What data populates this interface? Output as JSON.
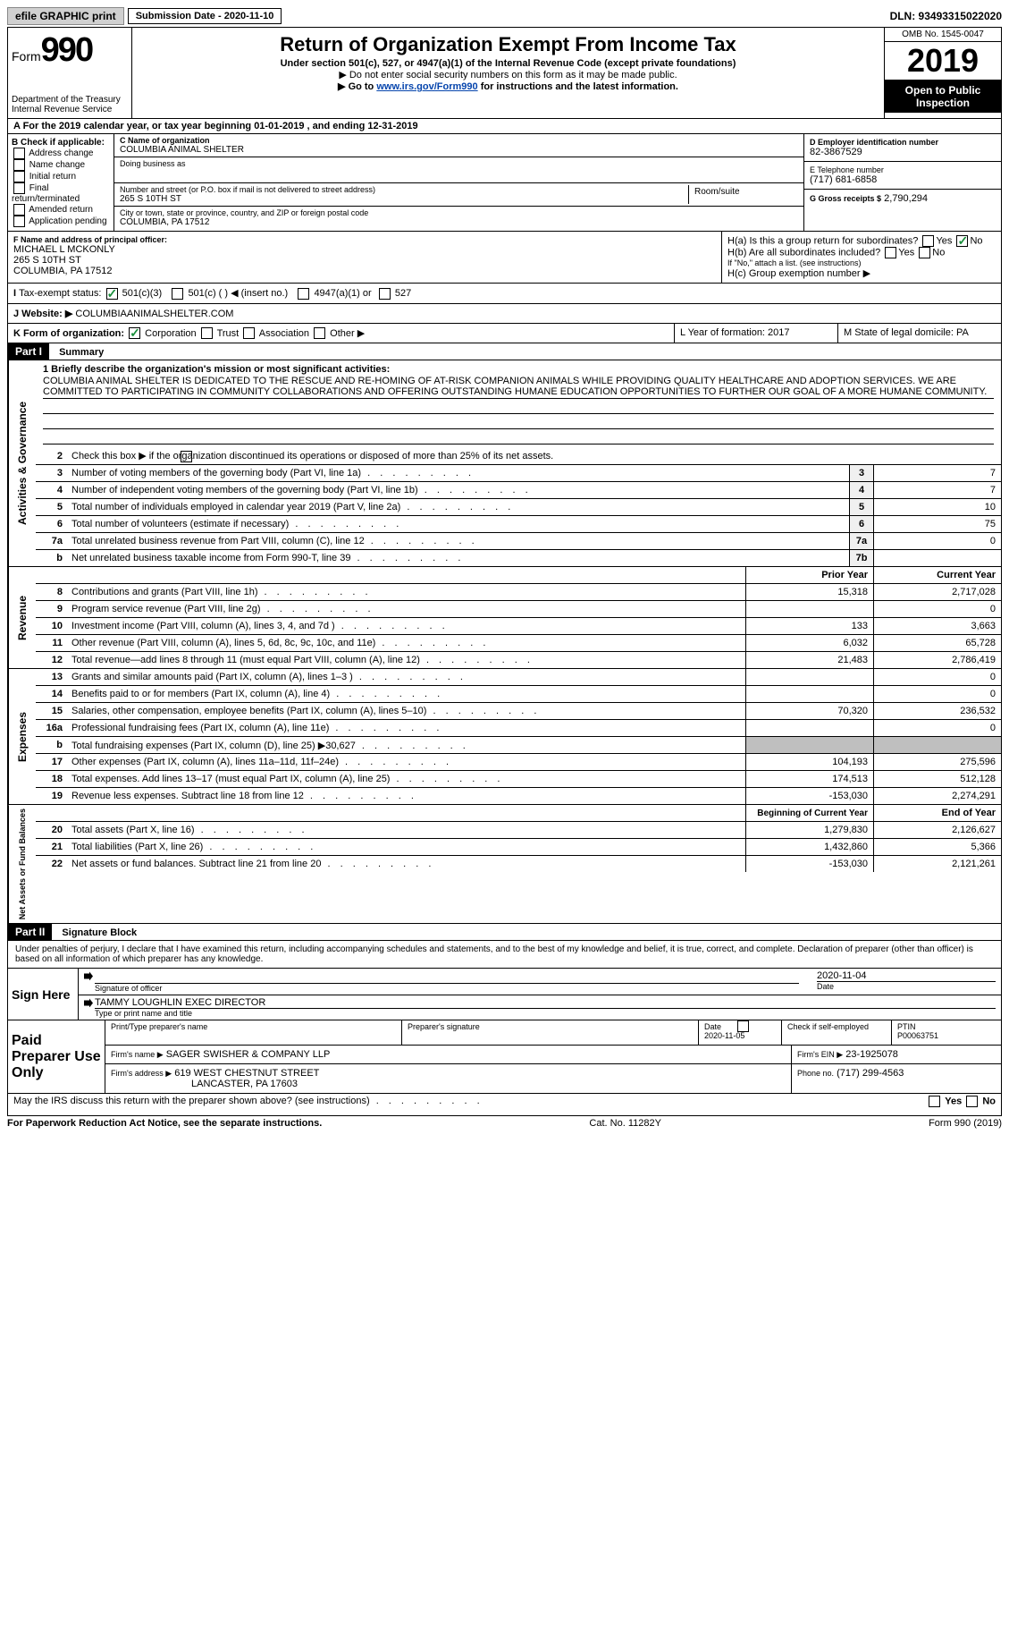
{
  "topbar": {
    "efile": "efile GRAPHIC print",
    "submission_label": "Submission Date - 2020-11-10",
    "dln": "DLN: 93493315022020"
  },
  "header": {
    "form_word": "Form",
    "form_num": "990",
    "dept": "Department of the Treasury\nInternal Revenue Service",
    "title": "Return of Organization Exempt From Income Tax",
    "subtitle": "Under section 501(c), 527, or 4947(a)(1) of the Internal Revenue Code (except private foundations)",
    "note1": "▶ Do not enter social security numbers on this form as it may be made public.",
    "note2_pre": "▶ Go to ",
    "note2_link": "www.irs.gov/Form990",
    "note2_post": " for instructions and the latest information.",
    "omb": "OMB No. 1545-0047",
    "year": "2019",
    "open": "Open to Public Inspection"
  },
  "row_a": "A For the 2019 calendar year, or tax year beginning 01-01-2019   , and ending 12-31-2019",
  "section_b": {
    "label": "B Check if applicable:",
    "items": [
      "Address change",
      "Name change",
      "Initial return",
      "Final return/terminated",
      "Amended return",
      "Application pending"
    ]
  },
  "section_c": {
    "name_label": "C Name of organization",
    "name": "COLUMBIA ANIMAL SHELTER",
    "dba_label": "Doing business as",
    "addr_label": "Number and street (or P.O. box if mail is not delivered to street address)",
    "room_label": "Room/suite",
    "addr": "265 S 10TH ST",
    "city_label": "City or town, state or province, country, and ZIP or foreign postal code",
    "city": "COLUMBIA, PA  17512"
  },
  "section_d": {
    "label": "D Employer identification number",
    "val": "82-3867529"
  },
  "section_e": {
    "label": "E Telephone number",
    "val": "(717) 681-6858"
  },
  "section_g": {
    "label": "G Gross receipts $",
    "val": "2,790,294"
  },
  "section_f": {
    "label": "F Name and address of principal officer:",
    "line1": "MICHAEL L MCKONLY",
    "line2": "265 S 10TH ST",
    "line3": "COLUMBIA, PA  17512"
  },
  "section_h": {
    "ha_label": "H(a)  Is this a group return for subordinates?",
    "hb_label": "H(b)  Are all subordinates included?",
    "hb_note": "If \"No,\" attach a list. (see instructions)",
    "hc_label": "H(c)  Group exemption number ▶",
    "yes": "Yes",
    "no": "No"
  },
  "tax_exempt": {
    "label": "Tax-exempt status:",
    "opt1": "501(c)(3)",
    "opt2": "501(c) (   ) ◀ (insert no.)",
    "opt3": "4947(a)(1) or",
    "opt4": "527"
  },
  "website": {
    "label": "J   Website: ▶",
    "val": "COLUMBIAANIMALSHELTER.COM"
  },
  "line_k": "K Form of organization:",
  "k_opts": [
    "Corporation",
    "Trust",
    "Association",
    "Other ▶"
  ],
  "line_l": "L Year of formation: 2017",
  "line_m": "M State of legal domicile: PA",
  "part1": {
    "header": "Part I",
    "title": "Summary",
    "q1_label": "1  Briefly describe the organization's mission or most significant activities:",
    "mission": "COLUMBIA ANIMAL SHELTER IS DEDICATED TO THE RESCUE AND RE-HOMING OF AT-RISK COMPANION ANIMALS WHILE PROVIDING QUALITY HEALTHCARE AND ADOPTION SERVICES. WE ARE COMMITTED TO PARTICIPATING IN COMMUNITY COLLABORATIONS AND OFFERING OUTSTANDING HUMANE EDUCATION OPPORTUNITIES TO FURTHER OUR GOAL OF A MORE HUMANE COMMUNITY.",
    "q2": "Check this box ▶        if the organization discontinued its operations or disposed of more than 25% of its net assets.",
    "governance_label": "Activities & Governance",
    "revenue_label": "Revenue",
    "expenses_label": "Expenses",
    "netassets_label": "Net Assets or Fund Balances",
    "rows_gov": [
      {
        "n": "3",
        "d": "Number of voting members of the governing body (Part VI, line 1a)",
        "b": "3",
        "v": "7"
      },
      {
        "n": "4",
        "d": "Number of independent voting members of the governing body (Part VI, line 1b)",
        "b": "4",
        "v": "7"
      },
      {
        "n": "5",
        "d": "Total number of individuals employed in calendar year 2019 (Part V, line 2a)",
        "b": "5",
        "v": "10"
      },
      {
        "n": "6",
        "d": "Total number of volunteers (estimate if necessary)",
        "b": "6",
        "v": "75"
      },
      {
        "n": "7a",
        "d": "Total unrelated business revenue from Part VIII, column (C), line 12",
        "b": "7a",
        "v": "0"
      },
      {
        "n": "b",
        "d": "Net unrelated business taxable income from Form 990-T, line 39",
        "b": "7b",
        "v": ""
      }
    ],
    "col_prior": "Prior Year",
    "col_current": "Current Year",
    "rows_rev": [
      {
        "n": "8",
        "d": "Contributions and grants (Part VIII, line 1h)",
        "p": "15,318",
        "c": "2,717,028"
      },
      {
        "n": "9",
        "d": "Program service revenue (Part VIII, line 2g)",
        "p": "",
        "c": "0"
      },
      {
        "n": "10",
        "d": "Investment income (Part VIII, column (A), lines 3, 4, and 7d )",
        "p": "133",
        "c": "3,663"
      },
      {
        "n": "11",
        "d": "Other revenue (Part VIII, column (A), lines 5, 6d, 8c, 9c, 10c, and 11e)",
        "p": "6,032",
        "c": "65,728"
      },
      {
        "n": "12",
        "d": "Total revenue—add lines 8 through 11 (must equal Part VIII, column (A), line 12)",
        "p": "21,483",
        "c": "2,786,419"
      }
    ],
    "rows_exp": [
      {
        "n": "13",
        "d": "Grants and similar amounts paid (Part IX, column (A), lines 1–3 )",
        "p": "",
        "c": "0"
      },
      {
        "n": "14",
        "d": "Benefits paid to or for members (Part IX, column (A), line 4)",
        "p": "",
        "c": "0"
      },
      {
        "n": "15",
        "d": "Salaries, other compensation, employee benefits (Part IX, column (A), lines 5–10)",
        "p": "70,320",
        "c": "236,532"
      },
      {
        "n": "16a",
        "d": "Professional fundraising fees (Part IX, column (A), line 11e)",
        "p": "",
        "c": "0"
      },
      {
        "n": "b",
        "d": "Total fundraising expenses (Part IX, column (D), line 25) ▶30,627",
        "p": "shade",
        "c": "shade"
      },
      {
        "n": "17",
        "d": "Other expenses (Part IX, column (A), lines 11a–11d, 11f–24e)",
        "p": "104,193",
        "c": "275,596"
      },
      {
        "n": "18",
        "d": "Total expenses. Add lines 13–17 (must equal Part IX, column (A), line 25)",
        "p": "174,513",
        "c": "512,128"
      },
      {
        "n": "19",
        "d": "Revenue less expenses. Subtract line 18 from line 12",
        "p": "-153,030",
        "c": "2,274,291"
      }
    ],
    "col_begin": "Beginning of Current Year",
    "col_end": "End of Year",
    "rows_net": [
      {
        "n": "20",
        "d": "Total assets (Part X, line 16)",
        "p": "1,279,830",
        "c": "2,126,627"
      },
      {
        "n": "21",
        "d": "Total liabilities (Part X, line 26)",
        "p": "1,432,860",
        "c": "5,366"
      },
      {
        "n": "22",
        "d": "Net assets or fund balances. Subtract line 21 from line 20",
        "p": "-153,030",
        "c": "2,121,261"
      }
    ]
  },
  "part2": {
    "header": "Part II",
    "title": "Signature Block",
    "declaration": "Under penalties of perjury, I declare that I have examined this return, including accompanying schedules and statements, and to the best of my knowledge and belief, it is true, correct, and complete. Declaration of preparer (other than officer) is based on all information of which preparer has any knowledge.",
    "sign_here": "Sign Here",
    "sig_officer": "Signature of officer",
    "sig_date": "Date",
    "sig_date_val": "2020-11-04",
    "officer_name": "TAMMY LOUGHLIN EXEC DIRECTOR",
    "officer_type": "Type or print name and title",
    "paid_label": "Paid Preparer Use Only",
    "prep_name_label": "Print/Type preparer's name",
    "prep_sig_label": "Preparer's signature",
    "prep_date_label": "Date",
    "prep_date": "2020-11-05",
    "check_self": "Check         if self-employed",
    "ptin_label": "PTIN",
    "ptin": "P00063751",
    "firm_name_label": "Firm's name    ▶",
    "firm_name": "SAGER SWISHER & COMPANY LLP",
    "firm_ein_label": "Firm's EIN ▶",
    "firm_ein": "23-1925078",
    "firm_addr_label": "Firm's address ▶",
    "firm_addr1": "619 WEST CHESTNUT STREET",
    "firm_addr2": "LANCASTER, PA  17603",
    "phone_label": "Phone no.",
    "phone": "(717) 299-4563",
    "may_irs": "May the IRS discuss this return with the preparer shown above? (see instructions)"
  },
  "footer": {
    "left": "For Paperwork Reduction Act Notice, see the separate instructions.",
    "mid": "Cat. No. 11282Y",
    "right": "Form 990 (2019)"
  }
}
